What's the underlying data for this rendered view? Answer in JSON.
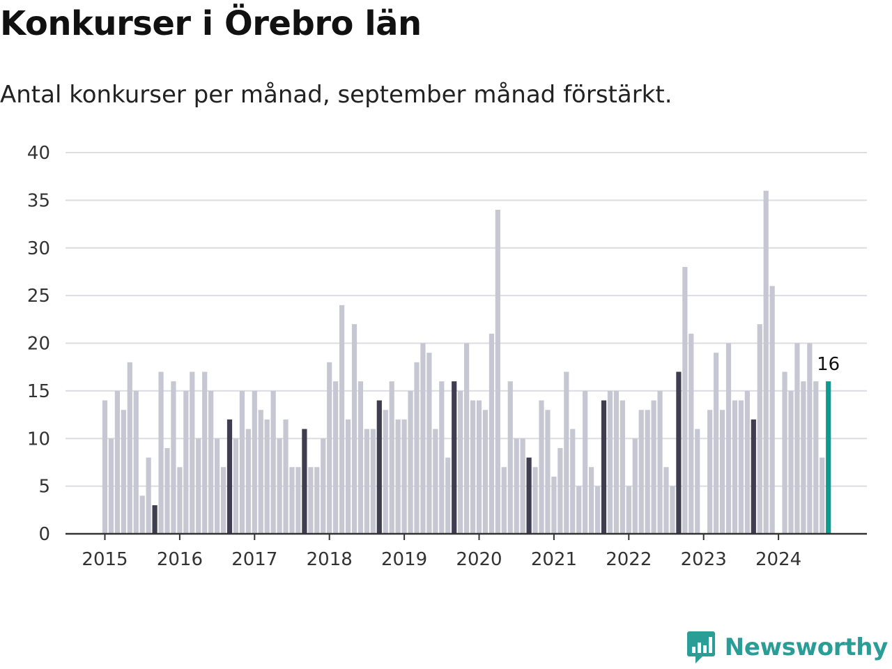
{
  "title": "Konkurser i Örebro län",
  "subtitle": "Antal konkurser per månad, september månad förstärkt.",
  "brand": {
    "name": "Newsworthy",
    "color": "#2a9d96",
    "icon": "chart-bubble-icon"
  },
  "colors": {
    "default_bar": "#c7c6d3",
    "highlight_bar": "#3f3d4f",
    "latest_bar": "#0e9b8f",
    "grid": "#dcdce2",
    "axis": "#333333"
  },
  "chart_data": {
    "type": "bar",
    "title": "Konkurser i Örebro län",
    "subtitle": "Antal konkurser per månad, september månad förstärkt.",
    "xlabel": "",
    "ylabel": "",
    "ylim": [
      0,
      40
    ],
    "yticks": [
      0,
      5,
      10,
      15,
      20,
      25,
      30,
      35,
      40
    ],
    "xticks": [
      "2015",
      "2016",
      "2017",
      "2018",
      "2019",
      "2020",
      "2021",
      "2022",
      "2023",
      "2024"
    ],
    "grid": true,
    "start": "2015-01",
    "highlight_month": "september",
    "latest_label": "16",
    "values": [
      14,
      10,
      15,
      13,
      18,
      15,
      4,
      8,
      3,
      17,
      9,
      16,
      7,
      15,
      17,
      10,
      17,
      15,
      10,
      7,
      12,
      10,
      15,
      11,
      15,
      13,
      12,
      15,
      10,
      12,
      7,
      7,
      11,
      7,
      7,
      10,
      18,
      16,
      24,
      12,
      22,
      16,
      11,
      11,
      14,
      13,
      16,
      12,
      12,
      15,
      18,
      20,
      19,
      11,
      16,
      8,
      16,
      15,
      20,
      14,
      14,
      13,
      21,
      34,
      7,
      16,
      10,
      10,
      8,
      7,
      14,
      13,
      6,
      9,
      17,
      11,
      5,
      15,
      7,
      5,
      14,
      15,
      15,
      14,
      5,
      10,
      13,
      13,
      14,
      15,
      7,
      5,
      17,
      28,
      21,
      11,
      0,
      13,
      19,
      13,
      20,
      14,
      14,
      15,
      12,
      22,
      36,
      26,
      0,
      17,
      15,
      20,
      16,
      20,
      16,
      8,
      16
    ]
  }
}
